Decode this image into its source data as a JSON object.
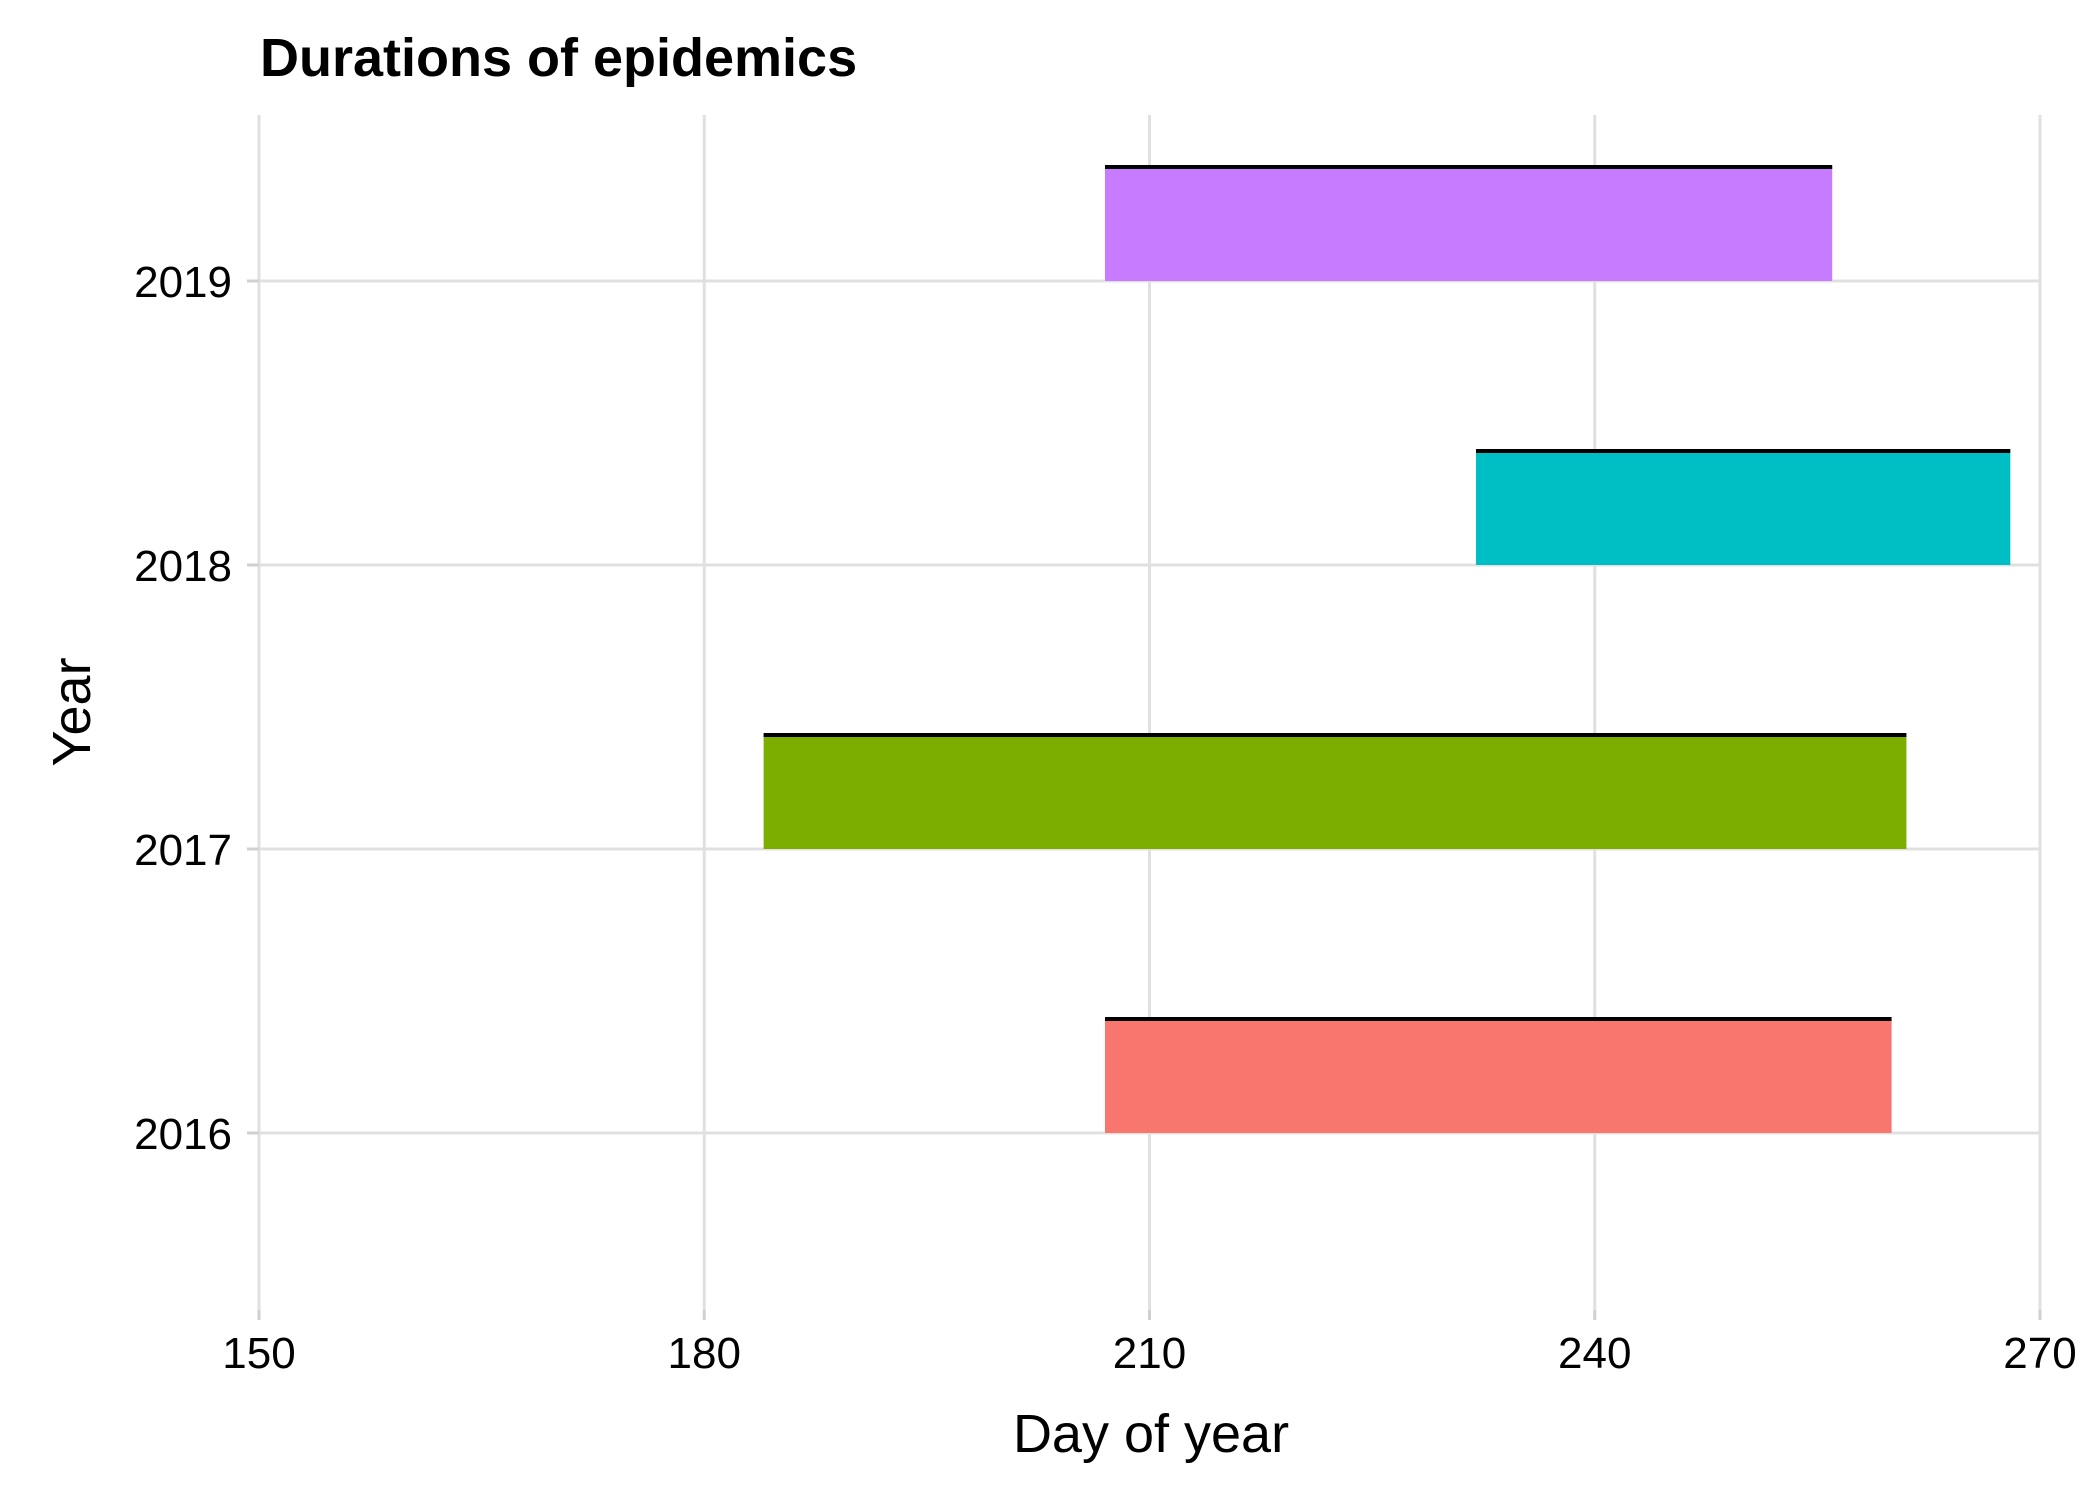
{
  "chart_data": {
    "type": "bar",
    "orientation": "horizontal-range",
    "title": "Durations of epidemics",
    "xlabel": "Day of year",
    "ylabel": "Year",
    "xlim": [
      150,
      270
    ],
    "x_ticks": [
      "150",
      "180",
      "210",
      "240",
      "270"
    ],
    "categories": [
      "2016",
      "2017",
      "2018",
      "2019"
    ],
    "bars": [
      {
        "year": "2016",
        "start": 207,
        "end": 260,
        "color": "#F8766D"
      },
      {
        "year": "2017",
        "start": 184,
        "end": 261,
        "color": "#7CAE00"
      },
      {
        "year": "2018",
        "start": 232,
        "end": 268,
        "color": "#00BFC4"
      },
      {
        "year": "2019",
        "start": 207,
        "end": 256,
        "color": "#C77CFF"
      }
    ],
    "grid": true,
    "legend": "none"
  }
}
